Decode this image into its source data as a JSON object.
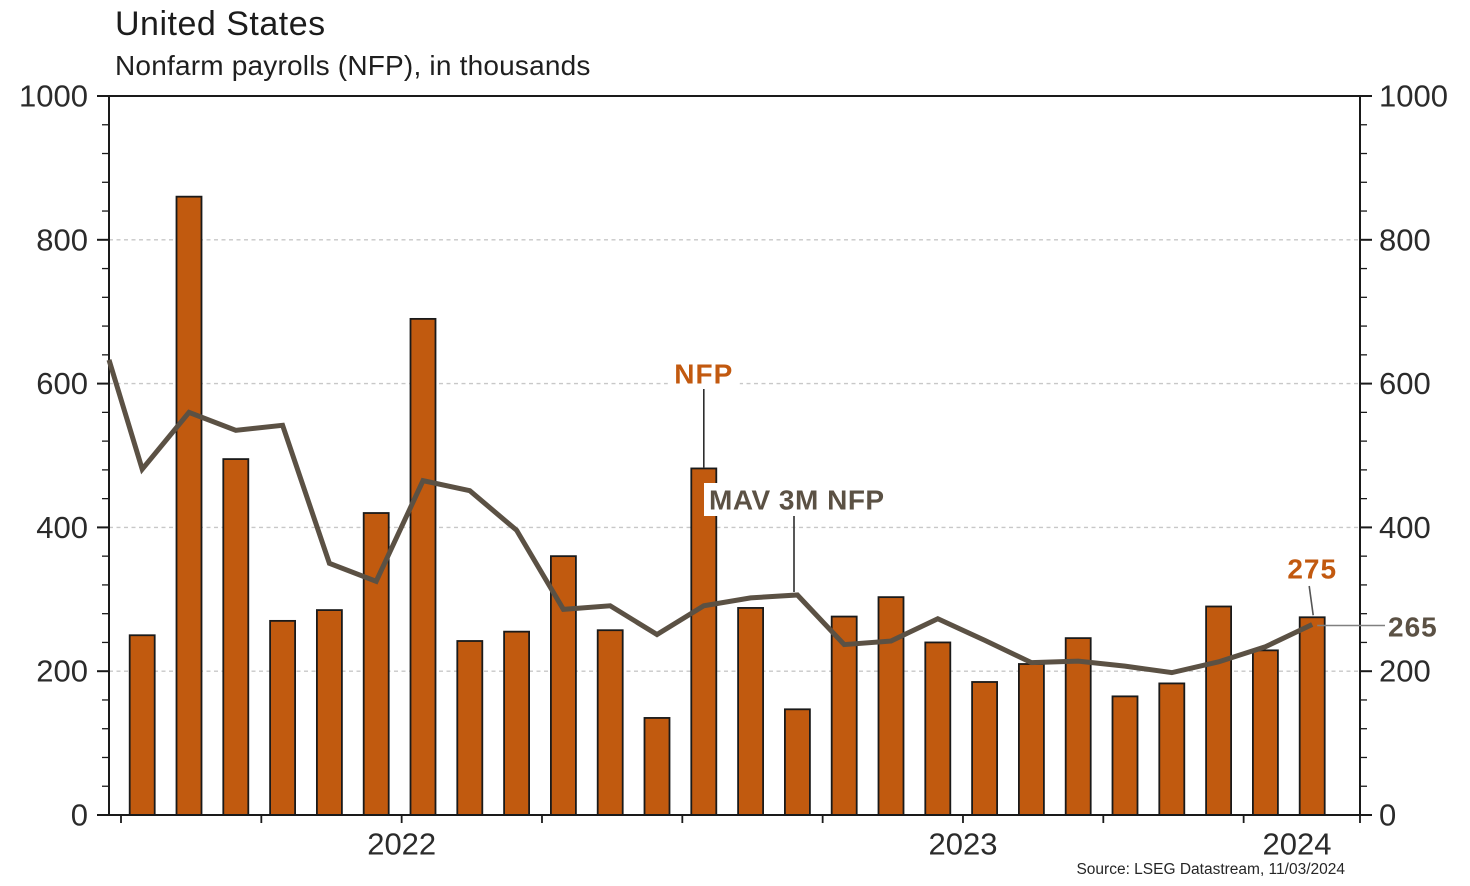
{
  "header": {
    "title": "United States",
    "subtitle": "Nonfarm payrolls (NFP), in thousands"
  },
  "source_note": "Source: LSEG Datastream, 11/03/2024",
  "colors": {
    "bar_fill": "#C15A0F",
    "bar_outline": "#1a1a1a",
    "mav_line": "#5B5144",
    "nfp_label": "#C2590F",
    "mav_label": "#5B5144",
    "grid": "#c8c8c8",
    "axis": "#1a1a1a",
    "axis_text": "#2b2b2b",
    "leader_dark": "#2e2e2e",
    "leader_gray": "#808080"
  },
  "chart_data": {
    "type": "combo_bar_line",
    "title": "United States",
    "subtitle": "Nonfarm payrolls (NFP), in thousands",
    "x": [
      "2022-01",
      "2022-02",
      "2022-03",
      "2022-04",
      "2022-05",
      "2022-06",
      "2022-07",
      "2022-08",
      "2022-09",
      "2022-10",
      "2022-11",
      "2022-12",
      "2023-01",
      "2023-02",
      "2023-03",
      "2023-04",
      "2023-05",
      "2023-06",
      "2023-07",
      "2023-08",
      "2023-09",
      "2023-10",
      "2023-11",
      "2023-12",
      "2024-01",
      "2024-02"
    ],
    "series": [
      {
        "name": "NFP",
        "type": "bar",
        "values": [
          250,
          860,
          495,
          270,
          285,
          420,
          690,
          242,
          255,
          360,
          257,
          135,
          482,
          288,
          147,
          276,
          303,
          240,
          185,
          210,
          246,
          165,
          183,
          290,
          229,
          275
        ]
      },
      {
        "name": "MAV 3M NFP",
        "type": "line",
        "left_edge_value": 633,
        "values": [
          481,
          560,
          535,
          542,
          350,
          325,
          465,
          451,
          396,
          286,
          291,
          251,
          291,
          302,
          306,
          237,
          242,
          273,
          243,
          212,
          214,
          207,
          198,
          213,
          234,
          265
        ]
      }
    ],
    "ylim": [
      0,
      1000
    ],
    "yticks": [
      0,
      200,
      400,
      600,
      800,
      1000
    ],
    "minor_tick_step": 40,
    "grid_values": [
      200,
      400,
      600,
      800
    ],
    "grid_style": "dashed horizontal",
    "year_labels": [
      {
        "label": "2022"
      },
      {
        "label": "2023"
      },
      {
        "label": "2024"
      }
    ],
    "annotations": [
      {
        "id": "nfp",
        "text": "NFP",
        "target_month": "2023-01"
      },
      {
        "id": "mav",
        "text": "MAV 3M NFP",
        "target_month": "2023-03"
      },
      {
        "id": "last_bar_value",
        "text": "275",
        "target_month": "2024-02"
      },
      {
        "id": "last_mav_value",
        "text": "265",
        "target_month": "2024-02"
      }
    ]
  }
}
